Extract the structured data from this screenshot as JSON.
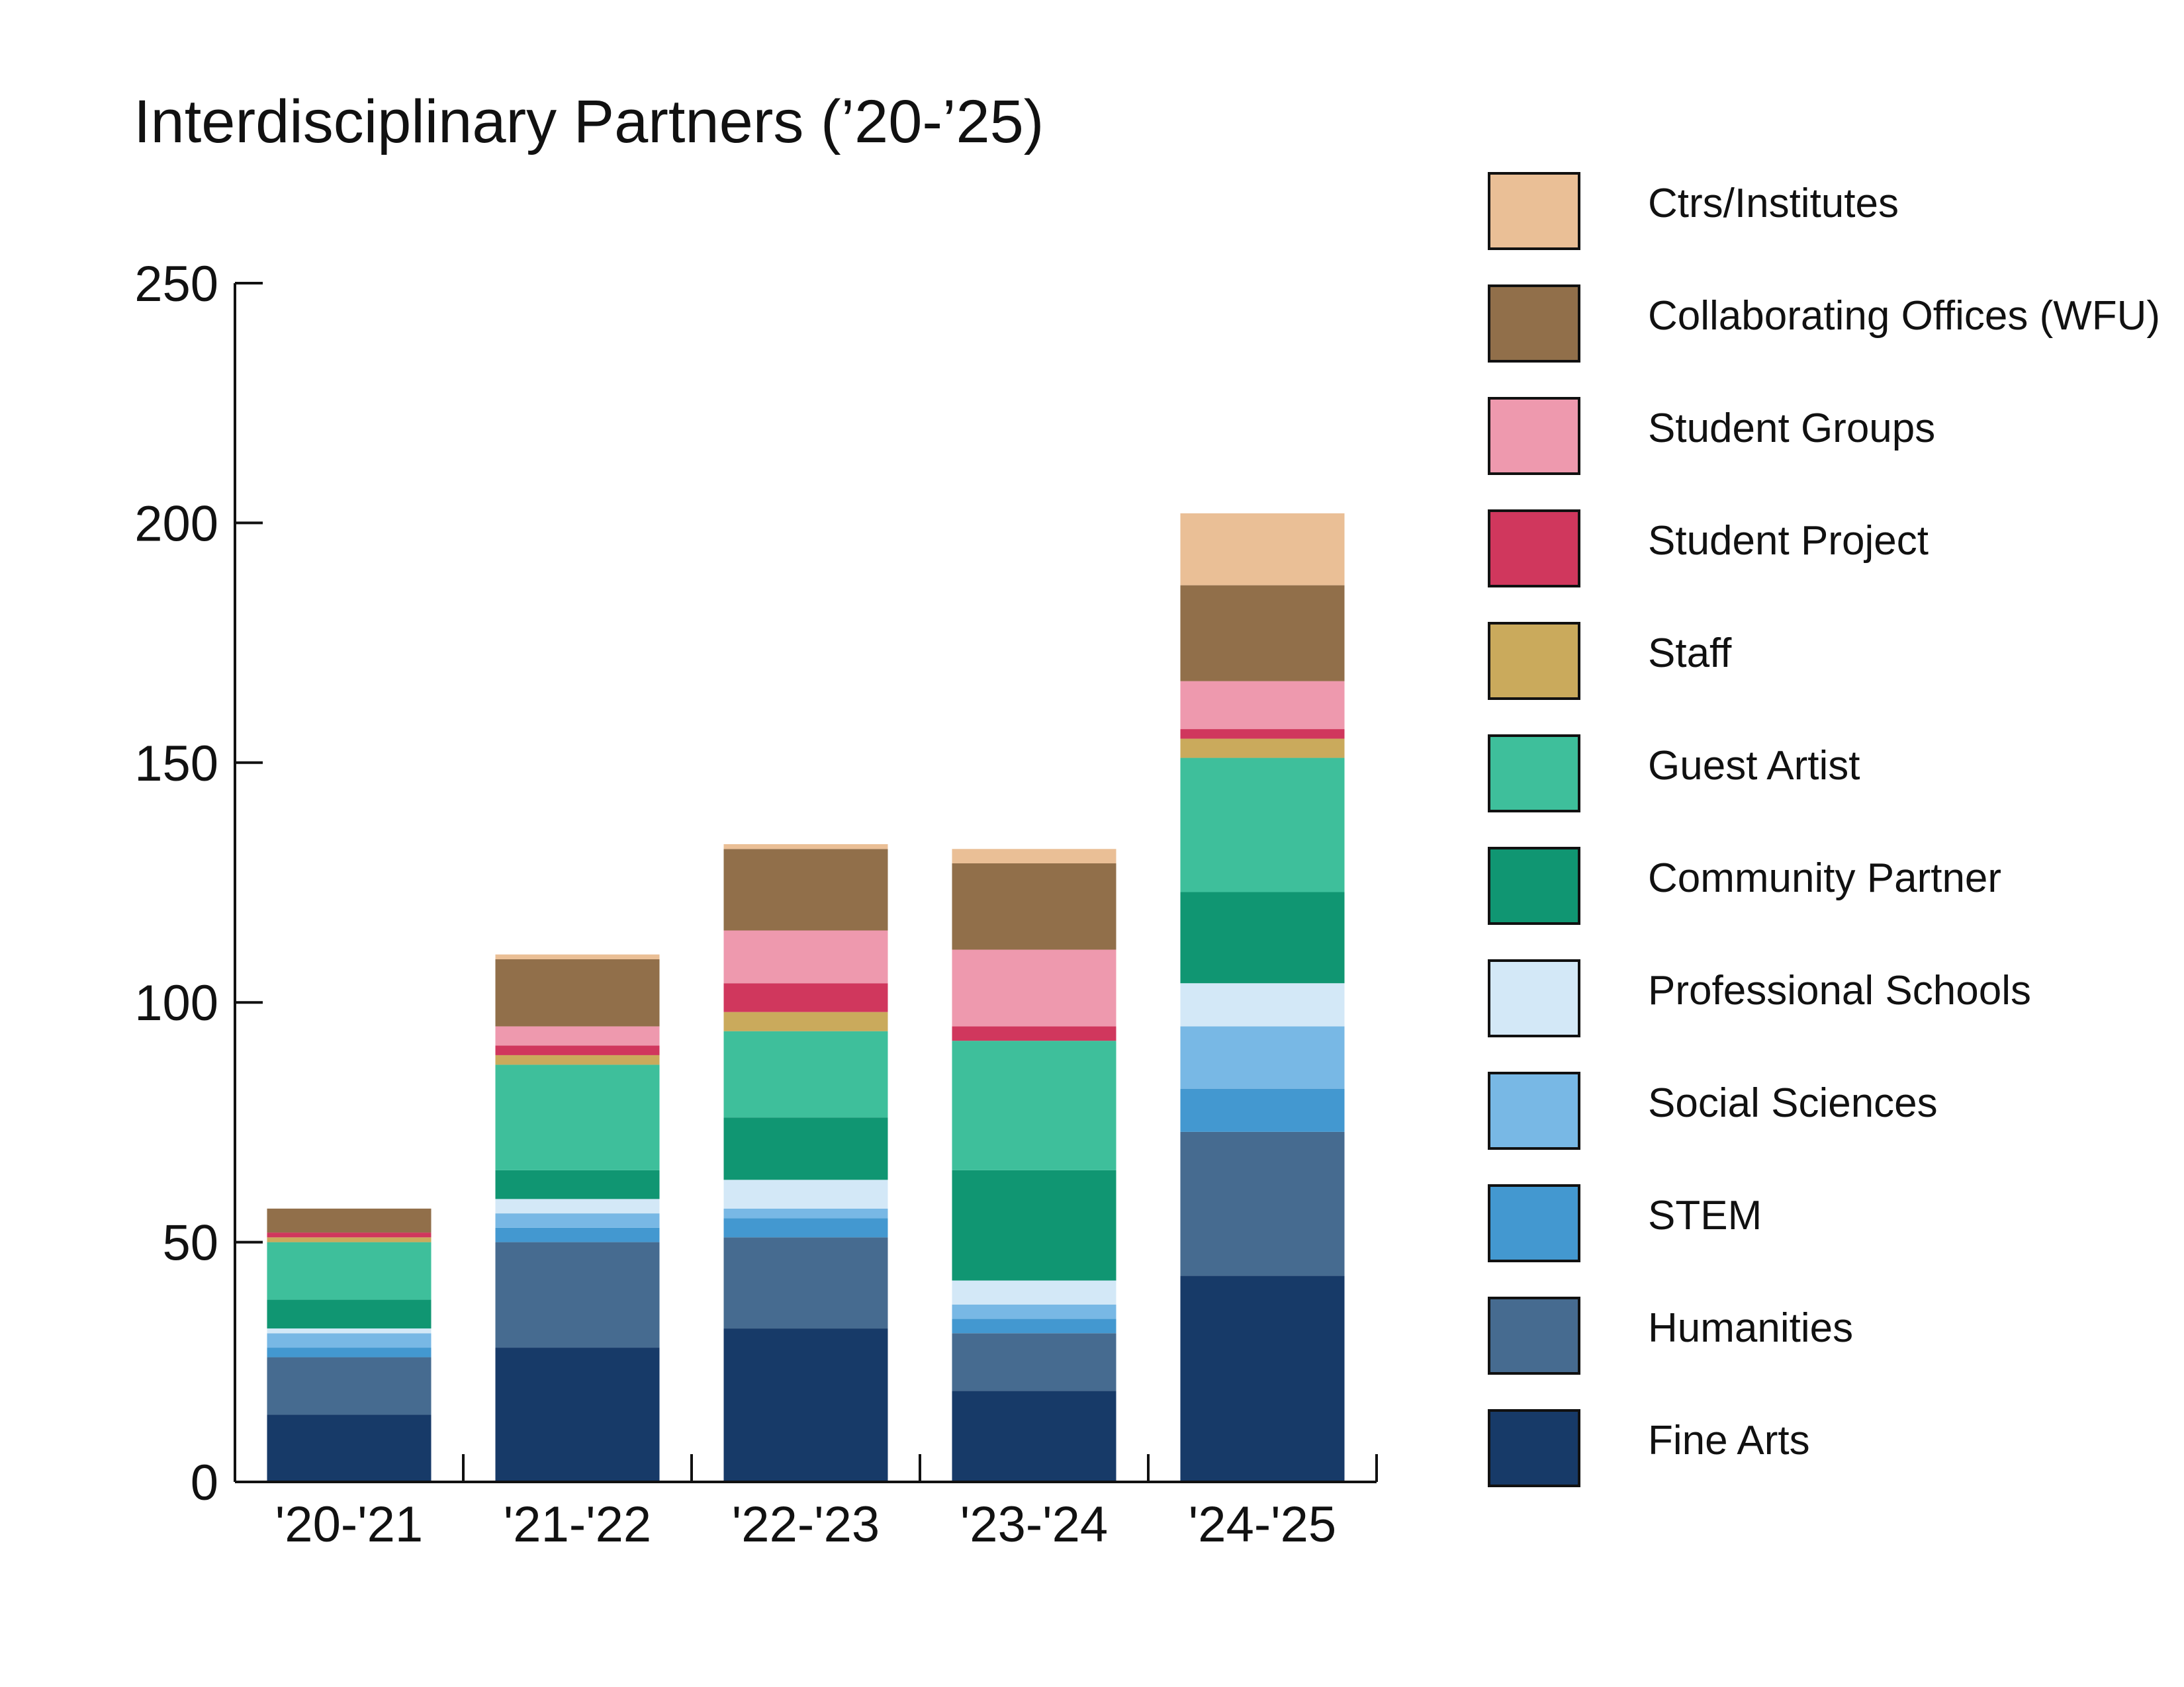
{
  "chart_data": {
    "type": "bar",
    "stacked": true,
    "title": "Interdisciplinary Partners (’20-’25)",
    "xlabel": "",
    "ylabel": "",
    "ylim": [
      0,
      250
    ],
    "yticks": [
      0,
      50,
      100,
      150,
      200,
      250
    ],
    "grid": false,
    "legend_position": "right",
    "categories": [
      "'20-'21",
      "'21-'22",
      "'22-'23",
      "'23-'24",
      "'24-'25"
    ],
    "series": [
      {
        "name": "Fine Arts",
        "color": "#173a68",
        "values": [
          14,
          28,
          32,
          19,
          43
        ]
      },
      {
        "name": "Humanities",
        "color": "#466b90",
        "values": [
          12,
          22,
          19,
          12,
          30
        ]
      },
      {
        "name": "STEM",
        "color": "#4398d0",
        "values": [
          2,
          3,
          4,
          3,
          9
        ]
      },
      {
        "name": "Social Sciences",
        "color": "#78b8e5",
        "values": [
          3,
          3,
          2,
          3,
          13
        ]
      },
      {
        "name": "Professional Schools",
        "color": "#d3e8f7",
        "values": [
          1,
          3,
          6,
          5,
          9
        ]
      },
      {
        "name": "Community Partner",
        "color": "#109672",
        "values": [
          6,
          6,
          13,
          23,
          19
        ]
      },
      {
        "name": "Guest Artist",
        "color": "#3ebf9b",
        "values": [
          12,
          22,
          18,
          27,
          28
        ]
      },
      {
        "name": "Staff",
        "color": "#caaa5c",
        "values": [
          1,
          2,
          4,
          0,
          4
        ]
      },
      {
        "name": "Student Project",
        "color": "#d0375d",
        "values": [
          1,
          2,
          6,
          3,
          2
        ]
      },
      {
        "name": "Student Groups",
        "color": "#ee99ae",
        "values": [
          0,
          4,
          11,
          16,
          10
        ]
      },
      {
        "name": "Collaborating Offices (WFU)",
        "color": "#916f4a",
        "values": [
          5,
          14,
          17,
          18,
          20
        ]
      },
      {
        "name": "Ctrs/Institutes",
        "color": "#eabf96",
        "values": [
          0,
          1,
          1,
          3,
          15
        ]
      }
    ]
  }
}
